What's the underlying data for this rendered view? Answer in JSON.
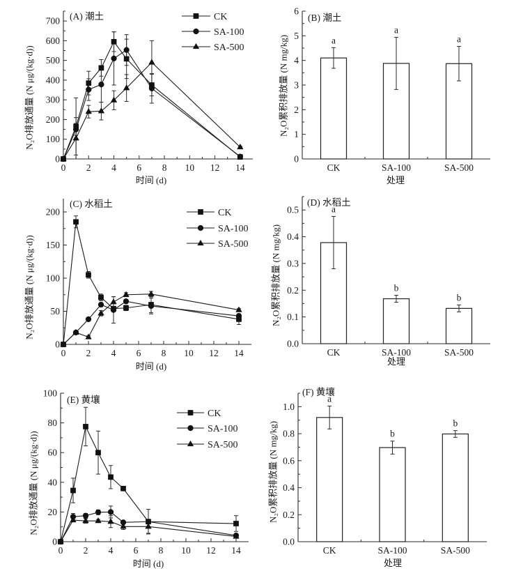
{
  "colors": {
    "line": "#1a1a1a",
    "marker": "#111111",
    "bar_fill": "#ffffff",
    "bar_edge": "#222222",
    "axis": "#2a2a2a"
  },
  "chart_data": [
    {
      "id": "A",
      "type": "line",
      "title": "(A) 潮土",
      "xlabel": "时间 (d)",
      "ylabel": "N₂O排放通量 (N μg/(kg·d))",
      "xlim": [
        0,
        15
      ],
      "ylim": [
        0,
        750
      ],
      "xticks": [
        "0",
        "2",
        "4",
        "6",
        "8",
        "10",
        "12",
        "14"
      ],
      "yticks": [
        "0",
        "100",
        "200",
        "300",
        "400",
        "500",
        "600",
        "700"
      ],
      "grid": false,
      "legend": "top-right",
      "x": [
        0,
        1,
        2,
        3,
        4,
        5,
        7,
        14
      ],
      "series": [
        {
          "name": "CK",
          "marker": "square",
          "values": [
            0,
            165,
            385,
            462,
            595,
            508,
            375,
            10
          ],
          "errors": [
            0,
            145,
            60,
            42,
            50,
            100,
            55,
            8
          ]
        },
        {
          "name": "SA-100",
          "marker": "circle",
          "values": [
            0,
            150,
            352,
            378,
            510,
            553,
            358,
            12
          ],
          "errors": [
            0,
            30,
            55,
            90,
            135,
            78,
            75,
            8
          ]
        },
        {
          "name": "SA-500",
          "marker": "triangle",
          "values": [
            0,
            105,
            240,
            243,
            298,
            360,
            490,
            60
          ],
          "errors": [
            0,
            105,
            32,
            45,
            48,
            68,
            110,
            5
          ]
        }
      ]
    },
    {
      "id": "B",
      "type": "bar",
      "title": "(B) 潮土",
      "xlabel": "处理",
      "ylabel": "N₂O累积排放量 (N mg/kg)",
      "ylim": [
        0,
        6
      ],
      "yticks": [
        "0",
        "1",
        "2",
        "3",
        "4",
        "5",
        "6"
      ],
      "grid": false,
      "categories": [
        "CK",
        "SA-100",
        "SA-500"
      ],
      "values": [
        4.1,
        3.88,
        3.87
      ],
      "errors": [
        0.42,
        1.06,
        0.7
      ],
      "letters": [
        "a",
        "a",
        "a"
      ]
    },
    {
      "id": "C",
      "type": "line",
      "title": "(C) 水稻土",
      "xlabel": "时间 (d)",
      "ylabel": "N₂O排放通量 (N μg/(kg·d))",
      "xlim": [
        0,
        15
      ],
      "ylim": [
        0,
        220
      ],
      "xticks": [
        "0",
        "2",
        "4",
        "6",
        "8",
        "10",
        "12",
        "14"
      ],
      "yticks": [
        "0",
        "50",
        "100",
        "150",
        "200"
      ],
      "grid": false,
      "legend": "top-right",
      "x": [
        0,
        1,
        2,
        3,
        4,
        5,
        7,
        14
      ],
      "series": [
        {
          "name": "CK",
          "marker": "square",
          "values": [
            0,
            185,
            105,
            71,
            54,
            55,
            60,
            38
          ],
          "errors": [
            0,
            9,
            5,
            5,
            3,
            4,
            12,
            8
          ]
        },
        {
          "name": "SA-100",
          "marker": "circle",
          "values": [
            0,
            18,
            38,
            60,
            52,
            65,
            58,
            43
          ],
          "errors": [
            0,
            2,
            2,
            3,
            20,
            3,
            12,
            3
          ]
        },
        {
          "name": "SA-500",
          "marker": "triangle",
          "values": [
            0,
            18,
            11,
            47,
            64,
            75,
            76,
            52
          ],
          "errors": [
            0,
            2,
            2,
            4,
            8,
            3,
            4,
            2
          ]
        }
      ]
    },
    {
      "id": "D",
      "type": "bar",
      "title": "(D) 水稻土",
      "xlabel": "处理",
      "ylabel": "N₂O累积排放量 (N mg/kg)",
      "ylim": [
        0,
        0.55
      ],
      "yticks": [
        "0.0",
        "0.1",
        "0.2",
        "0.3",
        "0.4",
        "0.5"
      ],
      "grid": false,
      "categories": [
        "CK",
        "SA-100",
        "SA-500"
      ],
      "values": [
        0.378,
        0.168,
        0.132
      ],
      "errors": [
        0.098,
        0.013,
        0.013
      ],
      "letters": [
        "a",
        "b",
        "b"
      ]
    },
    {
      "id": "E",
      "type": "line",
      "title": "(E) 黄壤",
      "xlabel": "时间 (d)",
      "ylabel": "N₂O排放通量 (N μg/(kg·d))",
      "xlim": [
        0,
        15
      ],
      "ylim": [
        0,
        100
      ],
      "xticks": [
        "0",
        "2",
        "4",
        "6",
        "8",
        "10",
        "12",
        "14"
      ],
      "yticks": [
        "0",
        "20",
        "40",
        "60",
        "80",
        "100"
      ],
      "grid": false,
      "legend": "top-right",
      "x": [
        0,
        1,
        2,
        3,
        4,
        5,
        7,
        14
      ],
      "series": [
        {
          "name": "CK",
          "marker": "square",
          "values": [
            0,
            34.5,
            77.5,
            60,
            43.5,
            35.8,
            13.5,
            12.2
          ],
          "errors": [
            0,
            8.3,
            13,
            14.5,
            7.8,
            1.5,
            8.3,
            5.3
          ]
        },
        {
          "name": "SA-100",
          "marker": "circle",
          "values": [
            0,
            16.8,
            17.5,
            19.8,
            20,
            13,
            13.5,
            4.2
          ],
          "errors": [
            0,
            2.2,
            1.5,
            1.6,
            4,
            1,
            1,
            1
          ]
        },
        {
          "name": "SA-500",
          "marker": "triangle",
          "values": [
            0,
            14.5,
            14,
            14,
            13.5,
            10.2,
            10.2,
            3.5
          ],
          "errors": [
            0,
            1,
            1.5,
            1,
            4,
            2,
            4.5,
            1
          ]
        }
      ]
    },
    {
      "id": "F",
      "type": "bar",
      "title": "(F) 黄壤",
      "xlabel": "处理",
      "ylabel": "N₂O累积排放量 (N mg/kg)",
      "ylim": [
        0,
        1.1
      ],
      "yticks": [
        "0.0",
        "0.2",
        "0.4",
        "0.6",
        "0.8",
        "1.0"
      ],
      "grid": false,
      "categories": [
        "CK",
        "SA-100",
        "SA-500"
      ],
      "values": [
        0.92,
        0.697,
        0.798
      ],
      "errors": [
        0.085,
        0.048,
        0.025
      ],
      "letters": [
        "a",
        "b",
        "b"
      ]
    }
  ]
}
